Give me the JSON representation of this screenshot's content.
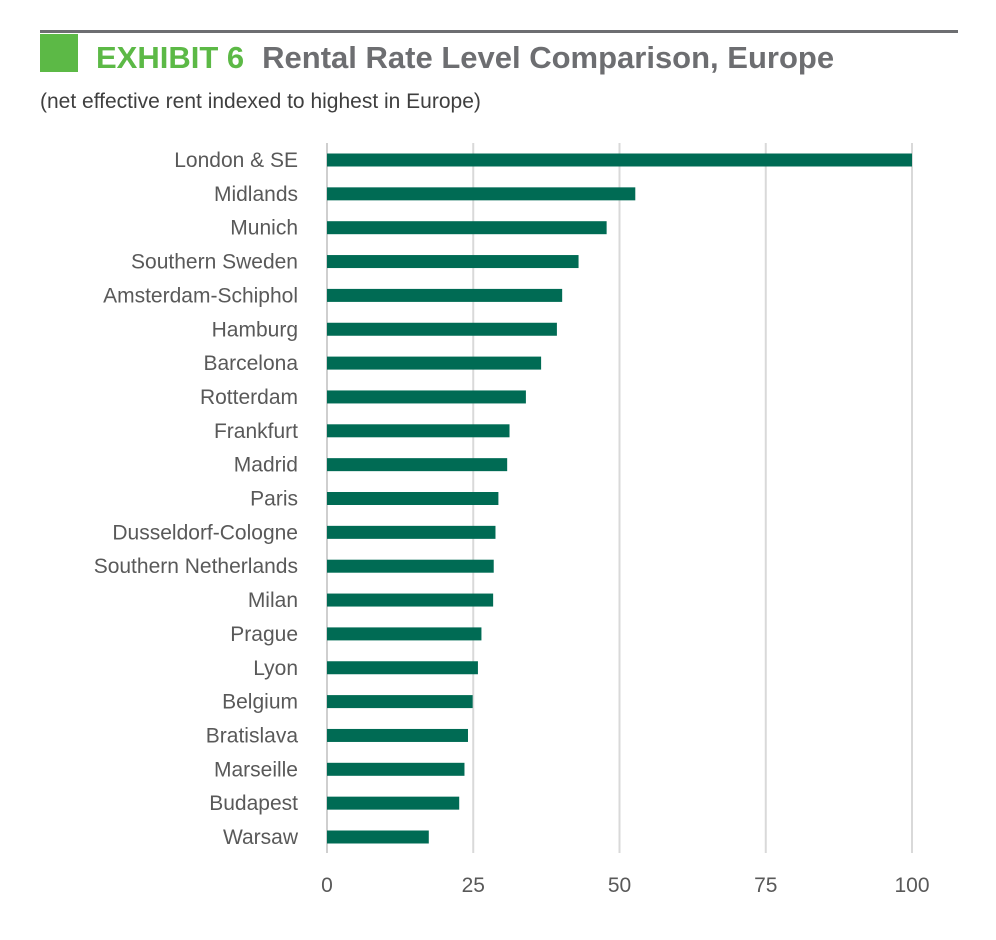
{
  "header": {
    "exhibit_label": "EXHIBIT 6",
    "title": "Rental Rate Level Comparison, Europe",
    "subtitle": "(net effective rent indexed to highest in Europe)"
  },
  "colors": {
    "accent_green": "#5cb946",
    "bar_color": "#006b54",
    "title_gray": "#6d6e71"
  },
  "chart_data": {
    "type": "bar",
    "orientation": "horizontal",
    "title": "Rental Rate Level Comparison, Europe",
    "subtitle": "(net effective rent indexed to highest in Europe)",
    "categories": [
      "London & SE",
      "Midlands",
      "Munich",
      "Southern Sweden",
      "Amsterdam-Schiphol",
      "Hamburg",
      "Barcelona",
      "Rotterdam",
      "Frankfurt",
      "Madrid",
      "Paris",
      "Dusseldorf-Cologne",
      "Southern Netherlands",
      "Milan",
      "Prague",
      "Lyon",
      "Belgium",
      "Bratislava",
      "Marseille",
      "Budapest",
      "Warsaw"
    ],
    "values": [
      100,
      52.7,
      47.8,
      43,
      40.2,
      39.3,
      36.6,
      34,
      31.2,
      30.8,
      29.3,
      28.8,
      28.5,
      28.4,
      26.4,
      25.8,
      24.9,
      24.1,
      23.5,
      22.6,
      17.4
    ],
    "xlim": [
      0,
      100
    ],
    "xticks": [
      0,
      25,
      50,
      75,
      100
    ],
    "xtick_labels": [
      "0",
      "25",
      "50",
      "75",
      "100"
    ],
    "xlabel": "",
    "ylabel": "",
    "grid": true
  }
}
